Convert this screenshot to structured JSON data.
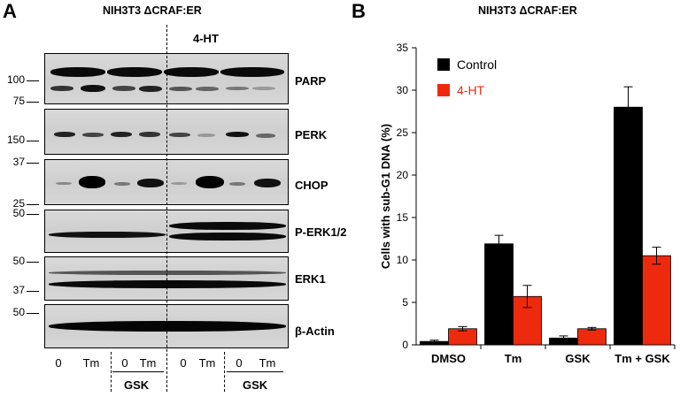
{
  "panel_a": {
    "letter": "A",
    "title": "NIH3T3 ΔCRAF:ER",
    "treatment_label": "4-HT",
    "blots": [
      {
        "label": "PARP"
      },
      {
        "label": "PERK"
      },
      {
        "label": "CHOP"
      },
      {
        "label": "P-ERK1/2"
      },
      {
        "label": "ERK1"
      },
      {
        "label": "β-Actin"
      }
    ],
    "mw_markers": [
      "100",
      "75",
      "150",
      "37",
      "25",
      "50",
      "50",
      "37",
      "50"
    ],
    "lanes": [
      "0",
      "Tm",
      "0",
      "Tm",
      "0",
      "Tm",
      "0",
      "Tm"
    ],
    "group_labels": [
      "GSK",
      "GSK"
    ]
  },
  "panel_b": {
    "letter": "B",
    "title": "NIH3T3 ΔCRAF:ER",
    "colors": {
      "control": "#000000",
      "ht": "#ee2a0e"
    }
  },
  "chart_data": {
    "type": "bar",
    "title": "NIH3T3 ΔCRAF:ER",
    "categories": [
      "DMSO",
      "Tm",
      "GSK",
      "Tm + GSK"
    ],
    "series": [
      {
        "name": "Control",
        "values": [
          0.4,
          11.9,
          0.8,
          28.0
        ],
        "errors": [
          0.15,
          1.0,
          0.25,
          2.4
        ],
        "color": "#000000"
      },
      {
        "name": "4-HT",
        "values": [
          1.9,
          5.7,
          1.9,
          10.5
        ],
        "errors": [
          0.25,
          1.3,
          0.15,
          1.0
        ],
        "color": "#ee2a0e"
      }
    ],
    "ylabel": "Cells with sub-G1 DNA (%)",
    "xlabel": "",
    "ylim": [
      0,
      35
    ],
    "yticks": [
      "0",
      "5",
      "10",
      "15",
      "20",
      "25",
      "30",
      "35"
    ],
    "legend": "top-left",
    "grid": false
  }
}
